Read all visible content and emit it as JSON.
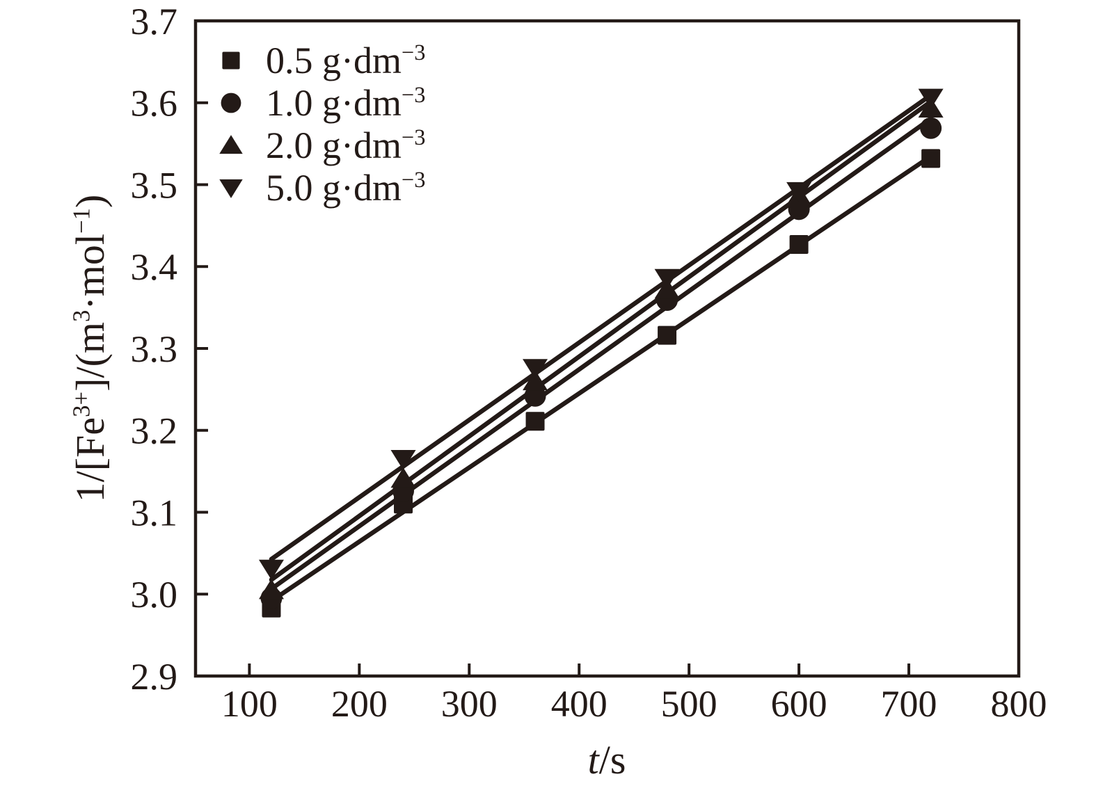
{
  "figure": {
    "background": "#ffffff",
    "ink_color": "#231a17"
  },
  "chart_data": {
    "type": "scatter",
    "title": "",
    "grid": false,
    "legend_position": "upper-left",
    "xlabel": "t/s",
    "ylabel": "1/[Fe3+]/(m3·mol-1)",
    "xlabel_parts": [
      {
        "text": "t",
        "italic": true
      },
      {
        "text": "/s"
      }
    ],
    "ylabel_parts": [
      {
        "text": "1/[Fe"
      },
      {
        "text": "3+",
        "sup": true
      },
      {
        "text": "]/(m"
      },
      {
        "text": "3",
        "sup": true
      },
      {
        "text": "·mol"
      },
      {
        "text": "−1",
        "sup": true
      },
      {
        "text": ")"
      }
    ],
    "xlim": [
      51,
      800
    ],
    "ylim": [
      2.9,
      3.7
    ],
    "x_ticks": [
      100,
      200,
      300,
      400,
      500,
      600,
      700,
      800
    ],
    "y_ticks": [
      "2.9",
      "3.0",
      "3.1",
      "3.2",
      "3.3",
      "3.4",
      "3.5",
      "3.6",
      "3.7"
    ],
    "x": [
      120,
      240,
      360,
      480,
      600,
      720
    ],
    "series": [
      {
        "name": "0.5 g·dm⁻³",
        "marker": "square",
        "values": [
          2.983,
          3.11,
          3.211,
          3.316,
          3.427,
          3.532
        ],
        "label_parts": [
          {
            "text": "0.5 g·dm"
          },
          {
            "text": "−3",
            "sup": true
          }
        ]
      },
      {
        "name": "1.0 g·dm⁻³",
        "marker": "circle",
        "values": [
          2.995,
          3.126,
          3.242,
          3.359,
          3.47,
          3.569
        ],
        "label_parts": [
          {
            "text": "1.0 g·dm"
          },
          {
            "text": "−3",
            "sup": true
          }
        ]
      },
      {
        "name": "2.0 g·dm⁻³",
        "marker": "triangle-up",
        "values": [
          3.005,
          3.141,
          3.26,
          3.372,
          3.486,
          3.593
        ],
        "label_parts": [
          {
            "text": "2.0 g·dm"
          },
          {
            "text": "−3",
            "sup": true
          }
        ]
      },
      {
        "name": "5.0 g·dm⁻³",
        "marker": "triangle-down",
        "values": [
          3.031,
          3.165,
          3.276,
          3.386,
          3.492,
          3.606
        ],
        "label_parts": [
          {
            "text": "5.0 g·dm"
          },
          {
            "text": "−3",
            "sup": true
          }
        ]
      }
    ]
  }
}
